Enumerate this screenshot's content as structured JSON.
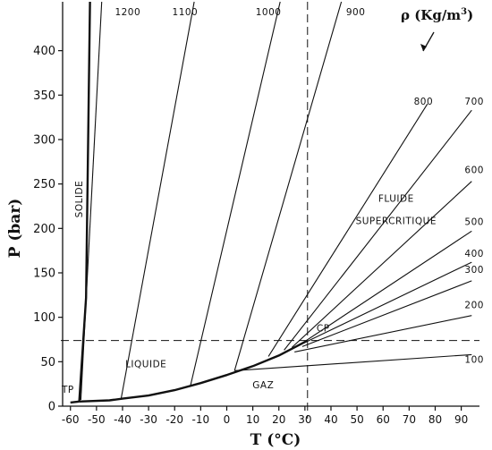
{
  "chart_data": {
    "type": "line",
    "title": "",
    "xlabel": "T (°C)",
    "ylabel": "P (bar)",
    "xlim": [
      -63,
      97
    ],
    "ylim": [
      0,
      455
    ],
    "xticks": [
      -60,
      -50,
      -40,
      -30,
      -20,
      -10,
      0,
      10,
      20,
      30,
      40,
      50,
      60,
      70,
      80,
      90
    ],
    "xtick_labels": [
      "-60",
      "-50",
      "-40",
      "-30",
      "-20",
      "-10",
      "0",
      "10",
      "20",
      "30",
      "40",
      "50",
      "60",
      "70",
      "80",
      "90"
    ],
    "yticks": [
      0,
      50,
      100,
      150,
      200,
      250,
      300,
      350,
      400
    ],
    "ytick_labels": [
      "0",
      "50",
      "100",
      "150",
      "200",
      "250",
      "300",
      "350",
      "400"
    ],
    "density_legend": "ρ (Kg/m3)",
    "phase_boundaries": [
      {
        "name": "melting",
        "points": [
          [
            -56.6,
            5.2
          ],
          [
            -54,
            122
          ],
          [
            -52.5,
            455
          ]
        ]
      },
      {
        "name": "sublimation",
        "points": [
          [
            -60,
            4.1
          ],
          [
            -56.6,
            5.2
          ]
        ]
      },
      {
        "name": "vaporization",
        "points": [
          [
            -56.6,
            5.2
          ],
          [
            -45,
            6.5
          ],
          [
            -40,
            8.5
          ],
          [
            -30,
            12
          ],
          [
            -20,
            18
          ],
          [
            -10,
            26
          ],
          [
            0,
            35
          ],
          [
            10,
            45
          ],
          [
            20,
            57
          ],
          [
            31,
            73.8
          ]
        ]
      }
    ],
    "reference_lines": [
      {
        "axis": "x",
        "value": 31
      },
      {
        "axis": "y",
        "value": 73.8
      }
    ],
    "isochores": [
      {
        "label": "1200",
        "points": [
          [
            -56,
            7
          ],
          [
            -48,
            455
          ]
        ]
      },
      {
        "label": "1100",
        "points": [
          [
            -40.5,
            9
          ],
          [
            -12.5,
            455
          ]
        ]
      },
      {
        "label": "1000",
        "points": [
          [
            -14,
            22
          ],
          [
            20.5,
            455
          ]
        ]
      },
      {
        "label": "900",
        "points": [
          [
            3,
            40
          ],
          [
            44,
            455
          ]
        ]
      },
      {
        "label": "800",
        "points": [
          [
            16,
            56
          ],
          [
            77,
            340
          ]
        ]
      },
      {
        "label": "700",
        "points": [
          [
            22,
            63
          ],
          [
            94,
            333
          ]
        ]
      },
      {
        "label": "600",
        "points": [
          [
            25,
            66
          ],
          [
            94,
            253
          ]
        ]
      },
      {
        "label": "500",
        "points": [
          [
            28,
            69
          ],
          [
            94,
            197
          ]
        ]
      },
      {
        "label": "400",
        "points": [
          [
            29.5,
            71
          ],
          [
            94,
            162
          ]
        ]
      },
      {
        "label": "300",
        "points": [
          [
            29,
            67
          ],
          [
            94,
            141
          ]
        ]
      },
      {
        "label": "200",
        "points": [
          [
            26,
            61
          ],
          [
            94,
            102
          ]
        ]
      },
      {
        "label": "100",
        "points": [
          [
            3,
            40
          ],
          [
            94,
            58
          ]
        ]
      }
    ],
    "annotations": [
      {
        "text": "SOLIDE",
        "at": [
          -55.5,
          233
        ],
        "rotate": -90
      },
      {
        "text": "LIQUIDE",
        "at": [
          -31,
          44
        ]
      },
      {
        "text": "GAZ",
        "at": [
          14,
          20
        ]
      },
      {
        "text": "TP",
        "at": [
          -61,
          15
        ]
      },
      {
        "text": "CP",
        "at": [
          37,
          84
        ]
      },
      {
        "text": "FLUIDE",
        "at": [
          65,
          230
        ]
      },
      {
        "text": "SUPERCRITIQUE",
        "at": [
          65,
          205
        ]
      },
      {
        "text": "1200",
        "at": [
          -38,
          440
        ]
      },
      {
        "text": "1100",
        "at": [
          -16,
          440
        ]
      },
      {
        "text": "1000",
        "at": [
          16,
          440
        ]
      },
      {
        "text": "900",
        "at": [
          49.5,
          440
        ]
      },
      {
        "text": "800",
        "at": [
          75.5,
          339
        ]
      },
      {
        "text": "700",
        "at": [
          95,
          339
        ]
      },
      {
        "text": "600",
        "at": [
          95,
          262
        ]
      },
      {
        "text": "500",
        "at": [
          95,
          204
        ]
      },
      {
        "text": "400",
        "at": [
          95,
          168
        ]
      },
      {
        "text": "300",
        "at": [
          95,
          150
        ]
      },
      {
        "text": "200",
        "at": [
          95,
          110
        ]
      },
      {
        "text": "100",
        "at": [
          95,
          49
        ]
      }
    ]
  }
}
